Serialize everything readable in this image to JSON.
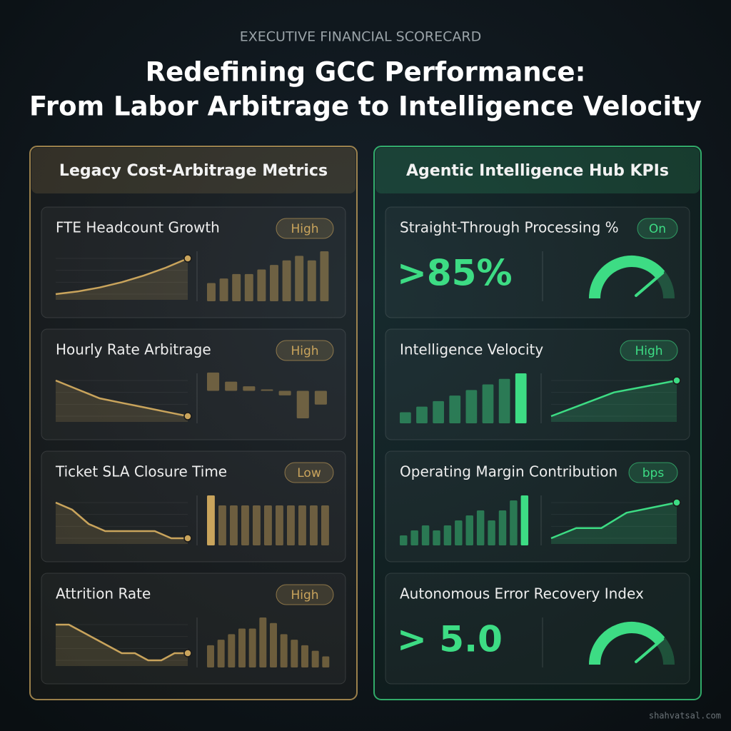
{
  "header": {
    "eyebrow": "EXECUTIVE FINANCIAL SCORECARD",
    "title_line1": "Redefining GCC Performance:",
    "title_line2": "From Labor Arbitrage to Intelligence Velocity"
  },
  "panels": [
    {
      "title": "Legacy Cost-Arbitrage Metrics",
      "color": "#c9a45c",
      "cards": [
        {
          "label": "FTE Headcount Growth",
          "badge": "High",
          "line": [
            10,
            12,
            15,
            19,
            24,
            30,
            37
          ],
          "bars": [
            4,
            5,
            6,
            6,
            7,
            8,
            9,
            10,
            9,
            11
          ]
        },
        {
          "label": "Hourly Rate Arbitrage",
          "badge": "High",
          "line": [
            10,
            8,
            6,
            5,
            4,
            3,
            2
          ],
          "bars": [
            4,
            2,
            1,
            0,
            -1,
            -6,
            -3
          ]
        },
        {
          "label": "Ticket SLA Closure Time",
          "badge": "Low",
          "line": [
            10,
            9,
            7,
            6,
            6,
            6,
            6,
            5,
            5
          ],
          "bars": [
            10,
            8,
            8,
            8,
            8,
            8,
            8,
            8,
            8,
            8,
            8
          ]
        },
        {
          "label": "Attrition Rate",
          "badge": "High",
          "line": [
            9,
            9,
            8,
            7,
            6,
            5,
            5,
            4,
            4,
            5,
            5
          ],
          "bars": [
            4,
            5,
            6,
            7,
            7,
            9,
            8,
            6,
            5,
            4,
            3,
            2
          ]
        }
      ]
    },
    {
      "title": "Agentic Intelligence Hub KPIs",
      "color": "#3ddc84",
      "cards": [
        {
          "label": "Straight-Through Processing %",
          "badge": "On",
          "metric": ">85%"
        },
        {
          "label": "Intelligence Velocity",
          "badge": "High",
          "bars": [
            2,
            3,
            4,
            5,
            6,
            7,
            8,
            9
          ],
          "line": [
            1,
            3,
            5,
            7,
            8,
            9,
            10
          ]
        },
        {
          "label": "Operating Margin Contribution",
          "badge": "bps",
          "bars": [
            2,
            3,
            4,
            3,
            4,
            5,
            6,
            7,
            5,
            7,
            9,
            10
          ],
          "line": [
            1,
            3,
            3,
            6,
            7,
            8
          ]
        },
        {
          "label": "Autonomous Error Recovery Index",
          "metric": "> 5.0"
        }
      ]
    }
  ],
  "footer": {
    "watermark": "shahvatsal.com"
  }
}
